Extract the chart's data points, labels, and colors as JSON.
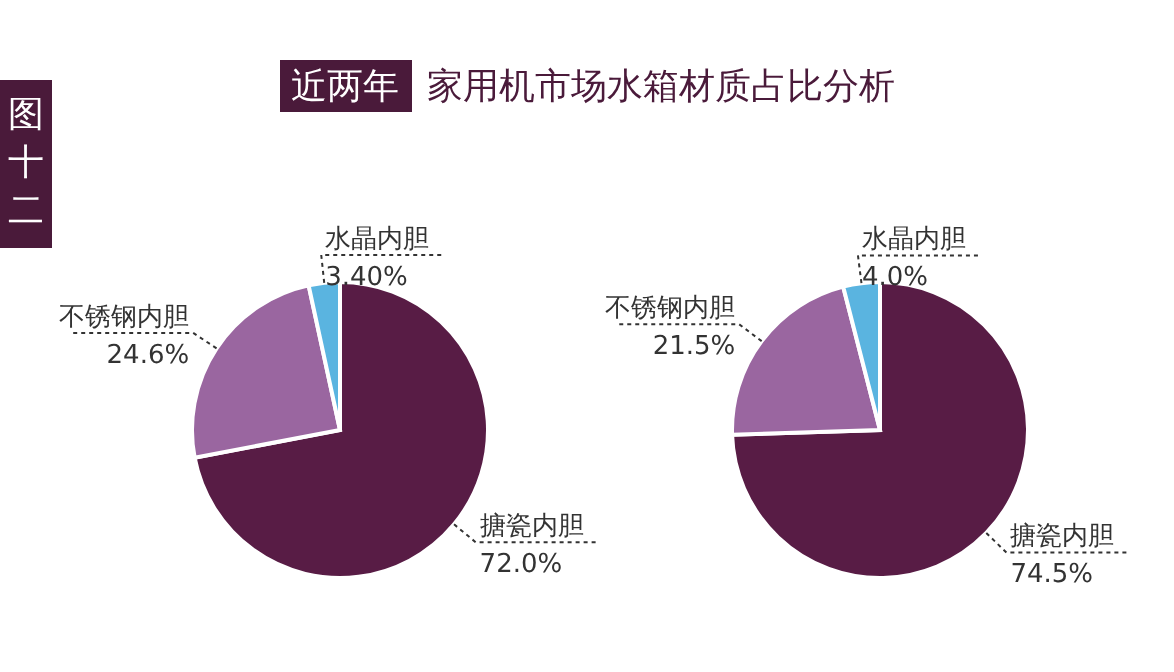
{
  "chart_data": [
    {
      "type": "pie",
      "title": "近两年",
      "subtitle": "家用机市场水箱材质占比分析",
      "annotations": [
        "图十二"
      ],
      "categories": [
        "搪瓷内胆",
        "不锈钢内胆",
        "水晶内胆"
      ],
      "values": [
        72.0,
        24.6,
        3.4
      ],
      "value_labels": [
        "72.0%",
        "24.6%",
        "3.40%"
      ],
      "colors": [
        "#581c45",
        "#9a66a0",
        "#5ab4e0"
      ],
      "legend": false
    },
    {
      "type": "pie",
      "categories": [
        "搪瓷内胆",
        "不锈钢内胆",
        "水晶内胆"
      ],
      "values": [
        74.5,
        21.5,
        4.0
      ],
      "value_labels": [
        "74.5%",
        "21.5%",
        "4.0%"
      ],
      "colors": [
        "#581c45",
        "#9a66a0",
        "#5ab4e0"
      ],
      "legend": false
    }
  ]
}
